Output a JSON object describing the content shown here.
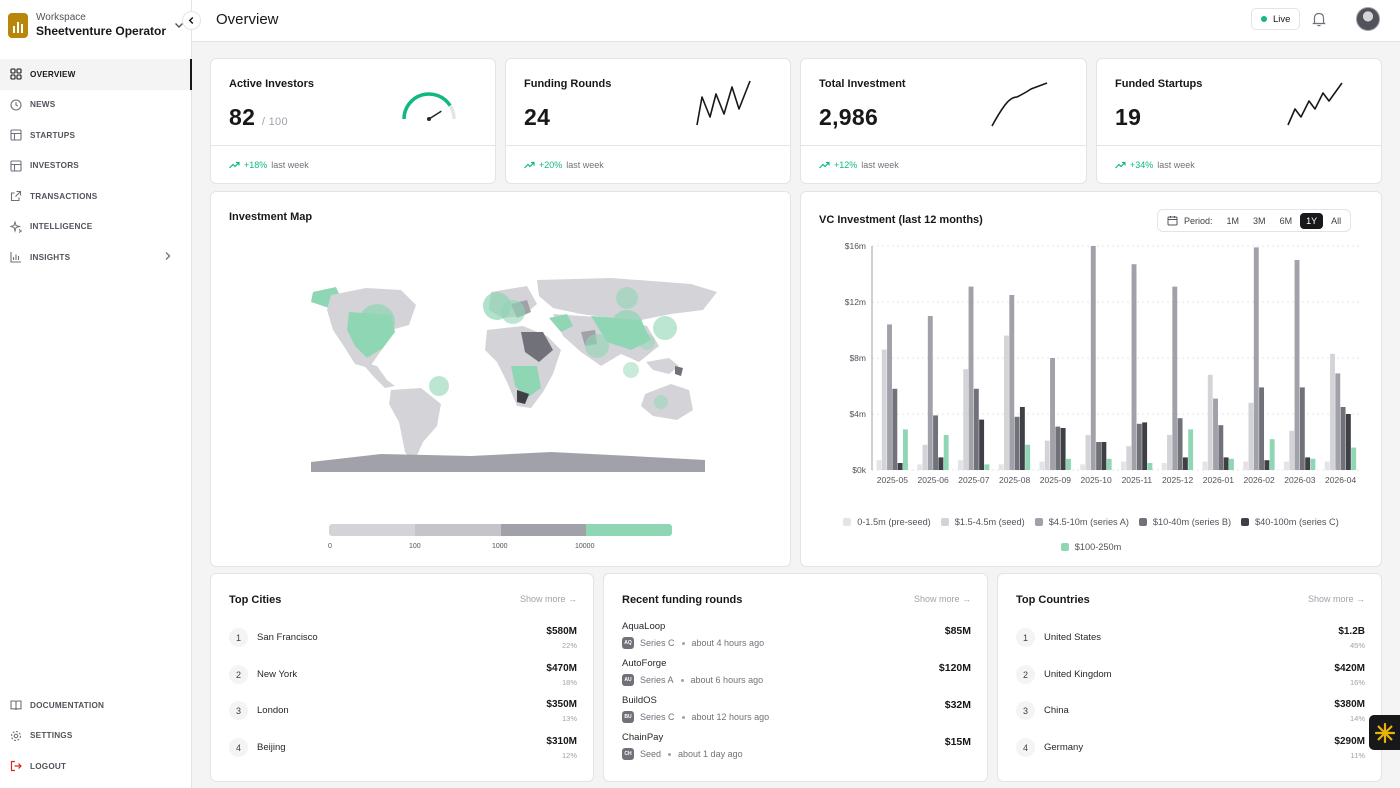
{
  "workspace": {
    "label": "Workspace",
    "name": "Sheetventure Operator"
  },
  "page": {
    "title": "Overview"
  },
  "header": {
    "live_label": "Live"
  },
  "sidebar": {
    "items": [
      {
        "label": "OVERVIEW",
        "icon": "grid-icon"
      },
      {
        "label": "NEWS",
        "icon": "clock-icon"
      },
      {
        "label": "STARTUPS",
        "icon": "table-icon"
      },
      {
        "label": "INVESTORS",
        "icon": "table-icon"
      },
      {
        "label": "TRANSACTIONS",
        "icon": "external-link-icon"
      },
      {
        "label": "INTELLIGENCE",
        "icon": "sparkles-icon"
      },
      {
        "label": "INSIGHTS",
        "icon": "bar-chart-icon"
      }
    ],
    "bottom": [
      {
        "label": "DOCUMENTATION",
        "icon": "book-icon"
      },
      {
        "label": "SETTINGS",
        "icon": "gear-icon"
      },
      {
        "label": "LOGOUT",
        "icon": "logout-icon"
      }
    ]
  },
  "stats": [
    {
      "title": "Active Investors",
      "value": "82",
      "sub": "/ 100",
      "change": "+18%",
      "period": "last week",
      "gauge_fraction": 0.82
    },
    {
      "title": "Funding Rounds",
      "value": "24",
      "change": "+20%",
      "period": "last week"
    },
    {
      "title": "Total Investment",
      "value": "2,986",
      "change": "+12%",
      "period": "last week"
    },
    {
      "title": "Funded Startups",
      "value": "19",
      "change": "+34%",
      "period": "last week"
    }
  ],
  "map": {
    "title": "Investment Map",
    "scale_labels": [
      "0",
      "100",
      "1000",
      "10000"
    ],
    "scale_colors": [
      "#d4d4d8",
      "#c4c4c9",
      "#a1a1aa",
      "#8fd6b4"
    ]
  },
  "chart": {
    "title": "VC Investment (last 12 months)",
    "period_label": "Period:",
    "periods": [
      "1M",
      "3M",
      "6M",
      "1Y",
      "All"
    ],
    "active_period": "1Y"
  },
  "chart_data": {
    "type": "bar",
    "title": "VC Investment (last 12 months)",
    "categories": [
      "2025-05",
      "2025-06",
      "2025-07",
      "2025-08",
      "2025-09",
      "2025-10",
      "2025-11",
      "2025-12",
      "2026-01",
      "2026-02",
      "2026-03",
      "2026-04"
    ],
    "yticks": [
      "$0k",
      "$4m",
      "$8m",
      "$12m",
      "$16m"
    ],
    "ylim": [
      0,
      16
    ],
    "yunit": "$m",
    "grid": true,
    "legend_position": "bottom",
    "series": [
      {
        "name": "0-1.5m (pre-seed)",
        "color": "#e4e4e7",
        "values": [
          0.7,
          0.4,
          0.7,
          0.4,
          0.6,
          0.4,
          0.6,
          0.5,
          0.6,
          0.6,
          0.6,
          0.6
        ]
      },
      {
        "name": "$1.5-4.5m (seed)",
        "color": "#d4d4d8",
        "values": [
          8.6,
          1.8,
          7.2,
          9.6,
          2.1,
          2.5,
          1.7,
          2.5,
          6.8,
          4.8,
          2.8,
          8.3
        ]
      },
      {
        "name": "$4.5-10m (series A)",
        "color": "#a1a1aa",
        "values": [
          10.4,
          11.0,
          13.1,
          12.5,
          8.0,
          16.0,
          14.7,
          13.1,
          5.1,
          15.9,
          15.0,
          6.9
        ]
      },
      {
        "name": "$10-40m (series B)",
        "color": "#71717a",
        "values": [
          5.8,
          3.9,
          5.8,
          3.8,
          3.1,
          2.0,
          3.3,
          3.7,
          3.2,
          5.9,
          5.9,
          4.5
        ]
      },
      {
        "name": "$40-100m (series C)",
        "color": "#3f3f46",
        "values": [
          0.5,
          0.9,
          3.6,
          4.5,
          3.0,
          2.0,
          3.4,
          0.9,
          0.9,
          0.7,
          0.9,
          4.0
        ]
      },
      {
        "name": "$100-250m",
        "color": "#8fd6b4",
        "values": [
          2.9,
          2.5,
          0.4,
          1.8,
          0.8,
          0.8,
          0.5,
          2.9,
          0.8,
          2.2,
          0.8,
          1.6
        ]
      }
    ]
  },
  "top_cities": {
    "title": "Top Cities",
    "show_more": "Show more",
    "items": [
      {
        "rank": "1",
        "name": "San Francisco",
        "value": "$580M",
        "pct": "22%"
      },
      {
        "rank": "2",
        "name": "New York",
        "value": "$470M",
        "pct": "18%"
      },
      {
        "rank": "3",
        "name": "London",
        "value": "$350M",
        "pct": "13%"
      },
      {
        "rank": "4",
        "name": "Beijing",
        "value": "$310M",
        "pct": "12%"
      }
    ]
  },
  "funding_rounds": {
    "title": "Recent funding rounds",
    "show_more": "Show more",
    "items": [
      {
        "name": "AquaLoop",
        "badge": "AQ",
        "series": "Series C",
        "time": "about 4 hours ago",
        "amount": "$85M"
      },
      {
        "name": "AutoForge",
        "badge": "AU",
        "series": "Series A",
        "time": "about 6 hours ago",
        "amount": "$120M"
      },
      {
        "name": "BuildOS",
        "badge": "BU",
        "series": "Series C",
        "time": "about 12 hours ago",
        "amount": "$32M"
      },
      {
        "name": "ChainPay",
        "badge": "CH",
        "series": "Seed",
        "time": "about 1 day ago",
        "amount": "$15M"
      }
    ]
  },
  "top_countries": {
    "title": "Top Countries",
    "show_more": "Show more",
    "items": [
      {
        "rank": "1",
        "name": "United States",
        "value": "$1.2B",
        "pct": "45%"
      },
      {
        "rank": "2",
        "name": "United Kingdom",
        "value": "$420M",
        "pct": "16%"
      },
      {
        "rank": "3",
        "name": "China",
        "value": "$380M",
        "pct": "14%"
      },
      {
        "rank": "4",
        "name": "Germany",
        "value": "$290M",
        "pct": "11%"
      }
    ]
  }
}
